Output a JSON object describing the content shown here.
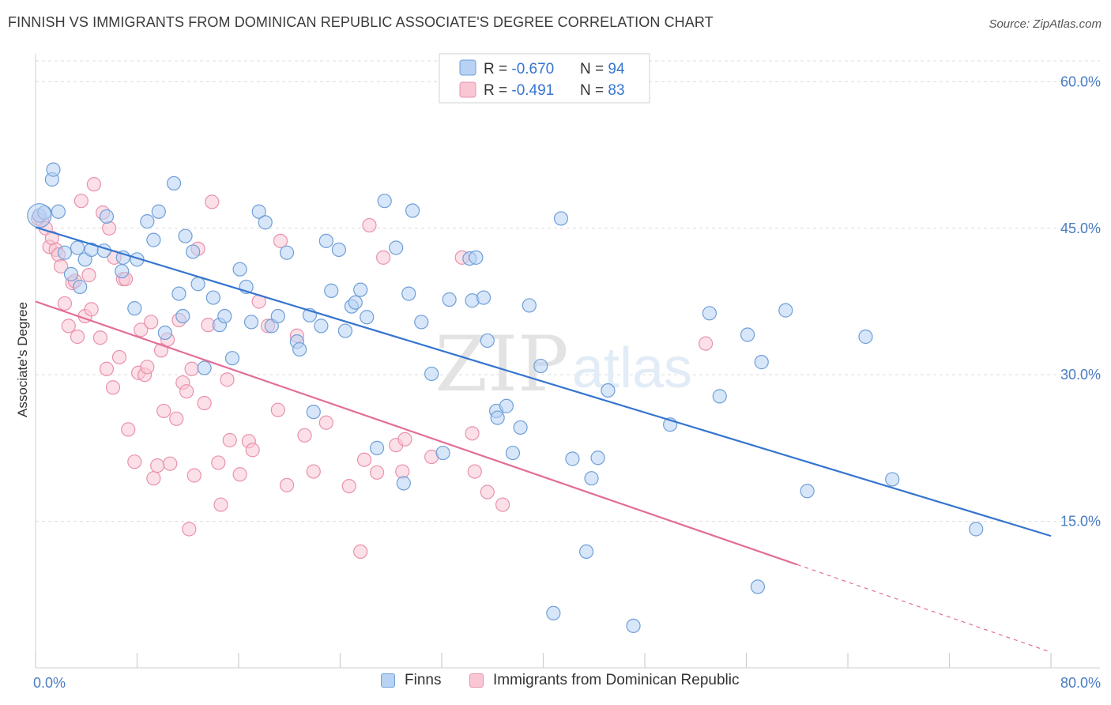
{
  "header": {
    "title": "FINNISH VS IMMIGRANTS FROM DOMINICAN REPUBLIC ASSOCIATE'S DEGREE CORRELATION CHART",
    "source": "Source: ZipAtlas.com"
  },
  "colors": {
    "finns_fill": "#b8d2f4",
    "finns_stroke": "#6f9fd8",
    "finns_line": "#3575d0",
    "dom_fill": "#f9c6d4",
    "dom_stroke": "#e892ad",
    "dom_line": "#e36d97",
    "tick_label": "#4a7cc4",
    "grid": "#dcdcdc"
  },
  "watermark": {
    "zip": "ZIP",
    "atlas": "atlas"
  },
  "legend_top": {
    "rows": [
      {
        "r_label": "R = ",
        "r_value": "-0.670",
        "n_label": "N = ",
        "n_value": "94"
      },
      {
        "r_label": "R = ",
        "r_value": " -0.491",
        "n_label": "N = ",
        "n_value": "83"
      }
    ]
  },
  "legend_bottom": {
    "items": [
      {
        "label": "Finns"
      },
      {
        "label": "Immigrants from Dominican Republic"
      }
    ]
  },
  "chart_data": {
    "type": "scatter",
    "title": "FINNISH VS IMMIGRANTS FROM DOMINICAN REPUBLIC ASSOCIATE'S DEGREE CORRELATION CHART",
    "xlabel": "",
    "ylabel": "Associate's Degree",
    "xlim": [
      0,
      80
    ],
    "ylim": [
      0,
      62.7
    ],
    "x_tick_labels": [
      "0.0%",
      "80.0%"
    ],
    "y_ticks": [
      15,
      30,
      45,
      60
    ],
    "y_tick_labels": [
      "15.0%",
      "30.0%",
      "45.0%",
      "60.0%"
    ],
    "grid": "horizontal dashed",
    "legend": "top-center",
    "series": [
      {
        "name": "Finns",
        "R": -0.67,
        "N": 94,
        "trend": {
          "x0": 0,
          "y0": 45.1,
          "x1": 80,
          "y1": 13.5,
          "dashed_from_x": null
        },
        "points": [
          [
            0.3,
            46.3
          ],
          [
            0.7,
            46.6
          ],
          [
            1.3,
            50.0
          ],
          [
            1.4,
            51.0
          ],
          [
            1.8,
            46.7
          ],
          [
            2.3,
            42.5
          ],
          [
            2.8,
            40.3
          ],
          [
            3.3,
            43.0
          ],
          [
            3.5,
            39.0
          ],
          [
            3.9,
            41.8
          ],
          [
            4.4,
            42.8
          ],
          [
            5.4,
            42.7
          ],
          [
            5.6,
            46.2
          ],
          [
            6.8,
            40.6
          ],
          [
            6.9,
            42.0
          ],
          [
            7.8,
            36.8
          ],
          [
            8.0,
            41.8
          ],
          [
            8.8,
            45.7
          ],
          [
            9.3,
            43.8
          ],
          [
            9.7,
            46.7
          ],
          [
            10.2,
            34.3
          ],
          [
            10.9,
            49.6
          ],
          [
            11.3,
            38.3
          ],
          [
            11.6,
            36.0
          ],
          [
            11.8,
            44.2
          ],
          [
            12.4,
            42.6
          ],
          [
            12.8,
            39.3
          ],
          [
            13.3,
            30.7
          ],
          [
            14.0,
            37.9
          ],
          [
            14.5,
            35.1
          ],
          [
            14.9,
            36.0
          ],
          [
            15.5,
            31.7
          ],
          [
            16.1,
            40.8
          ],
          [
            16.6,
            39.0
          ],
          [
            17.0,
            35.4
          ],
          [
            17.6,
            46.7
          ],
          [
            18.1,
            45.6
          ],
          [
            18.6,
            35.0
          ],
          [
            19.1,
            36.0
          ],
          [
            19.8,
            42.5
          ],
          [
            20.6,
            33.4
          ],
          [
            20.8,
            32.6
          ],
          [
            21.6,
            36.1
          ],
          [
            21.9,
            26.2
          ],
          [
            22.5,
            35.0
          ],
          [
            22.9,
            43.7
          ],
          [
            23.3,
            38.6
          ],
          [
            23.9,
            42.8
          ],
          [
            24.4,
            34.5
          ],
          [
            24.9,
            37.0
          ],
          [
            25.2,
            37.4
          ],
          [
            25.6,
            38.7
          ],
          [
            26.1,
            35.9
          ],
          [
            26.9,
            22.5
          ],
          [
            27.5,
            47.8
          ],
          [
            28.4,
            43.0
          ],
          [
            29.0,
            18.9
          ],
          [
            29.4,
            38.3
          ],
          [
            29.7,
            46.8
          ],
          [
            30.4,
            35.4
          ],
          [
            31.2,
            30.1
          ],
          [
            32.1,
            22.0
          ],
          [
            32.6,
            37.7
          ],
          [
            34.2,
            41.9
          ],
          [
            34.4,
            37.6
          ],
          [
            34.7,
            42.0
          ],
          [
            35.3,
            37.9
          ],
          [
            35.6,
            33.5
          ],
          [
            36.3,
            26.3
          ],
          [
            36.4,
            25.6
          ],
          [
            37.1,
            26.8
          ],
          [
            37.6,
            22.0
          ],
          [
            38.2,
            24.6
          ],
          [
            38.9,
            37.1
          ],
          [
            39.8,
            30.9
          ],
          [
            40.8,
            5.6
          ],
          [
            41.4,
            46.0
          ],
          [
            42.3,
            21.4
          ],
          [
            43.4,
            11.9
          ],
          [
            43.8,
            19.4
          ],
          [
            44.3,
            21.5
          ],
          [
            45.1,
            28.4
          ],
          [
            47.1,
            4.3
          ],
          [
            50.0,
            24.9
          ],
          [
            53.1,
            36.3
          ],
          [
            53.9,
            27.8
          ],
          [
            56.1,
            34.1
          ],
          [
            56.9,
            8.3
          ],
          [
            57.2,
            31.3
          ],
          [
            59.1,
            36.6
          ],
          [
            60.8,
            18.1
          ],
          [
            65.4,
            33.9
          ],
          [
            67.5,
            19.3
          ],
          [
            74.1,
            14.2
          ]
        ]
      },
      {
        "name": "Immigrants from Dominican Republic",
        "R": -0.491,
        "N": 83,
        "trend": {
          "x0": 0,
          "y0": 37.5,
          "x1": 80,
          "y1": 1.6,
          "dashed_from_x": 60
        },
        "points": [
          [
            0.2,
            46.0
          ],
          [
            0.5,
            45.8
          ],
          [
            0.8,
            45.0
          ],
          [
            1.1,
            43.1
          ],
          [
            1.3,
            44.0
          ],
          [
            1.6,
            42.8
          ],
          [
            1.8,
            42.3
          ],
          [
            2.0,
            41.1
          ],
          [
            2.3,
            37.3
          ],
          [
            2.6,
            35.0
          ],
          [
            2.9,
            39.4
          ],
          [
            3.1,
            39.6
          ],
          [
            3.3,
            33.9
          ],
          [
            3.6,
            47.8
          ],
          [
            3.9,
            36.0
          ],
          [
            4.2,
            40.2
          ],
          [
            4.4,
            36.7
          ],
          [
            4.6,
            49.5
          ],
          [
            5.1,
            33.8
          ],
          [
            5.3,
            46.6
          ],
          [
            5.6,
            30.6
          ],
          [
            5.8,
            45.0
          ],
          [
            6.1,
            28.7
          ],
          [
            6.2,
            42.0
          ],
          [
            6.6,
            31.8
          ],
          [
            6.9,
            39.8
          ],
          [
            7.1,
            39.8
          ],
          [
            7.3,
            24.4
          ],
          [
            7.8,
            21.1
          ],
          [
            8.1,
            30.2
          ],
          [
            8.3,
            34.6
          ],
          [
            8.6,
            30.0
          ],
          [
            8.8,
            30.8
          ],
          [
            9.1,
            35.4
          ],
          [
            9.3,
            19.4
          ],
          [
            9.6,
            20.7
          ],
          [
            9.9,
            32.5
          ],
          [
            10.1,
            26.3
          ],
          [
            10.4,
            33.6
          ],
          [
            10.6,
            20.9
          ],
          [
            11.1,
            25.5
          ],
          [
            11.3,
            35.6
          ],
          [
            11.6,
            29.2
          ],
          [
            11.9,
            28.3
          ],
          [
            12.1,
            14.2
          ],
          [
            12.3,
            30.6
          ],
          [
            12.5,
            19.7
          ],
          [
            12.8,
            42.9
          ],
          [
            13.3,
            27.1
          ],
          [
            13.6,
            35.1
          ],
          [
            13.9,
            47.7
          ],
          [
            14.4,
            21.0
          ],
          [
            14.6,
            16.7
          ],
          [
            15.1,
            29.5
          ],
          [
            15.3,
            23.3
          ],
          [
            16.1,
            19.8
          ],
          [
            16.8,
            23.2
          ],
          [
            17.1,
            22.3
          ],
          [
            17.6,
            37.5
          ],
          [
            18.3,
            35.0
          ],
          [
            19.1,
            26.4
          ],
          [
            19.3,
            43.7
          ],
          [
            19.8,
            18.7
          ],
          [
            20.6,
            34.0
          ],
          [
            21.2,
            23.8
          ],
          [
            21.9,
            20.1
          ],
          [
            22.9,
            25.1
          ],
          [
            24.7,
            18.6
          ],
          [
            25.6,
            11.9
          ],
          [
            25.9,
            21.3
          ],
          [
            26.3,
            45.3
          ],
          [
            26.9,
            20.0
          ],
          [
            27.4,
            42.0
          ],
          [
            28.4,
            22.8
          ],
          [
            28.9,
            20.1
          ],
          [
            29.1,
            23.4
          ],
          [
            31.2,
            21.6
          ],
          [
            33.6,
            42.0
          ],
          [
            34.4,
            24.0
          ],
          [
            34.6,
            20.1
          ],
          [
            35.6,
            18.0
          ],
          [
            36.8,
            16.7
          ],
          [
            52.8,
            33.2
          ]
        ]
      }
    ]
  }
}
